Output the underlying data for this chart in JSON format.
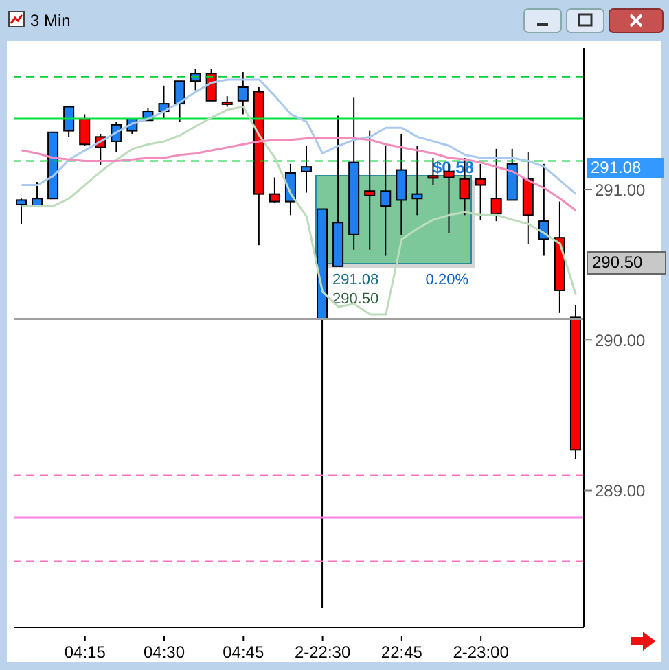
{
  "chart_data": {
    "type": "candlestick",
    "title": "3 Min",
    "categories": [
      null,
      null,
      null,
      null,
      "04:15",
      null,
      null,
      null,
      null,
      "04:30",
      null,
      null,
      null,
      null,
      "04:45",
      null,
      null,
      null,
      null,
      "2-22:30",
      null,
      null,
      null,
      null,
      "22:45",
      null,
      null,
      null,
      null,
      "2-23:00",
      null,
      null,
      null,
      null,
      null,
      null
    ],
    "ohlc": [
      [
        290.9,
        290.94,
        290.77,
        290.93
      ],
      [
        290.89,
        291.05,
        290.89,
        290.94
      ],
      [
        290.94,
        291.38,
        290.94,
        291.38
      ],
      [
        291.39,
        291.55,
        291.35,
        291.55
      ],
      [
        291.47,
        291.5,
        291.29,
        291.3
      ],
      [
        291.35,
        291.37,
        291.16,
        291.28
      ],
      [
        291.32,
        291.45,
        291.25,
        291.43
      ],
      [
        291.39,
        291.47,
        291.37,
        291.47
      ],
      [
        291.46,
        291.54,
        291.46,
        291.52
      ],
      [
        291.52,
        291.69,
        291.47,
        291.57
      ],
      [
        291.57,
        291.72,
        291.45,
        291.72
      ],
      [
        291.72,
        291.8,
        291.66,
        291.77
      ],
      [
        291.77,
        291.8,
        291.59,
        291.59
      ],
      [
        291.58,
        291.62,
        291.55,
        291.57
      ],
      [
        291.59,
        291.78,
        291.5,
        291.68
      ],
      [
        291.65,
        291.68,
        290.63,
        290.97
      ],
      [
        290.97,
        291.08,
        290.91,
        290.92
      ],
      [
        290.92,
        291.17,
        290.83,
        291.11
      ],
      [
        291.12,
        291.29,
        290.98,
        291.15
      ],
      [
        290.14,
        290.87,
        288.22,
        290.87
      ],
      [
        290.49,
        291.49,
        290.49,
        290.78
      ],
      [
        290.7,
        291.61,
        290.6,
        291.18
      ],
      [
        290.99,
        291.39,
        290.6,
        290.96
      ],
      [
        290.89,
        291.29,
        290.56,
        290.99
      ],
      [
        290.93,
        291.37,
        290.7,
        291.13
      ],
      [
        290.94,
        291.29,
        290.83,
        290.97
      ],
      [
        291.09,
        291.21,
        291.03,
        291.08
      ],
      [
        291.12,
        291.17,
        290.71,
        291.08
      ],
      [
        291.07,
        291.21,
        290.83,
        290.94
      ],
      [
        291.07,
        291.17,
        290.8,
        291.03
      ],
      [
        290.94,
        291.27,
        290.79,
        290.84
      ],
      [
        290.93,
        291.27,
        290.93,
        291.17
      ],
      [
        291.07,
        291.25,
        290.64,
        290.83
      ],
      [
        290.67,
        291.17,
        290.56,
        290.79
      ],
      [
        290.68,
        290.92,
        290.18,
        290.33
      ],
      [
        290.15,
        290.23,
        289.21,
        289.27
      ]
    ],
    "colors": [
      "#1e7ff0",
      "#1e7ff0",
      "#1e7ff0",
      "#1e7ff0",
      "#ff0000",
      "#ff0000",
      "#1e7ff0",
      "#1e7ff0",
      "#1e7ff0",
      "#1e7ff0",
      "#1e7ff0",
      "#1e7ff0",
      "#ff0000",
      "#ff0000",
      "#1e7ff0",
      "#ff0000",
      "#ff0000",
      "#1e7ff0",
      "#1e7ff0",
      "#1e7ff0",
      "#1e7ff0",
      "#1e7ff0",
      "#ff0000",
      "#1e7ff0",
      "#1e7ff0",
      "#1e7ff0",
      "#ff0000",
      "#ff0000",
      "#ff0000",
      "#ff0000",
      "#ff0000",
      "#1e7ff0",
      "#ff0000",
      "#1e7ff0",
      "#ff0000",
      "#ff0000"
    ],
    "series": [
      {
        "type": "line",
        "color": "#a9c9ee",
        "values": [
          291.03,
          291.03,
          291.09,
          291.2,
          291.26,
          291.32,
          291.38,
          291.44,
          291.47,
          291.52,
          291.58,
          291.65,
          291.71,
          291.73,
          291.73,
          291.73,
          291.62,
          291.5,
          291.45,
          291.24,
          291.29,
          291.33,
          291.35,
          291.41,
          291.41,
          291.35,
          291.32,
          291.29,
          291.23,
          291.21,
          291.21,
          291.21,
          291.19,
          291.15,
          291.06,
          290.97
        ]
      },
      {
        "type": "line",
        "color": "#bcdcbc",
        "values": [
          290.89,
          290.89,
          290.89,
          290.94,
          291.03,
          291.12,
          291.2,
          291.27,
          291.3,
          291.32,
          291.36,
          291.42,
          291.48,
          291.53,
          291.55,
          291.36,
          291.21,
          290.97,
          290.82,
          290.32,
          290.22,
          290.24,
          290.17,
          290.17,
          290.67,
          290.74,
          290.8,
          290.83,
          290.85,
          290.83,
          290.83,
          290.8,
          290.77,
          290.71,
          290.64,
          290.3
        ]
      },
      {
        "type": "line",
        "color": "#f28cbc",
        "values": [
          291.26,
          291.24,
          291.21,
          291.2,
          291.19,
          291.19,
          291.19,
          291.2,
          291.21,
          291.21,
          291.23,
          291.24,
          291.26,
          291.28,
          291.3,
          291.32,
          291.33,
          291.33,
          291.34,
          291.34,
          291.34,
          291.34,
          291.33,
          291.3,
          291.28,
          291.26,
          291.24,
          291.21,
          291.2,
          291.18,
          291.15,
          291.12,
          291.06,
          291.01,
          290.94,
          290.86
        ]
      }
    ],
    "ylim": [
      288.09,
      291.94
    ],
    "yticks": [
      {
        "value": 289,
        "label": "289.00"
      },
      {
        "value": 290,
        "label": "290.00"
      },
      {
        "value": 291,
        "label": "291.00"
      }
    ],
    "ref_lines": [
      {
        "axis": "y",
        "value": 291.75,
        "color": "#00d030",
        "line_style": "dashed"
      },
      {
        "axis": "y",
        "value": 291.47,
        "color": "#00e040",
        "line_style": "solid"
      },
      {
        "axis": "y",
        "value": 291.19,
        "color": "#00d030",
        "line_style": "dashed"
      },
      {
        "axis": "y",
        "value": 290.14,
        "color": "#a0a0a0",
        "line_style": "solid"
      },
      {
        "axis": "y",
        "value": 289.1,
        "color": "#ff70c0",
        "line_style": "dashed"
      },
      {
        "axis": "y",
        "value": 288.82,
        "color": "#ff80e0",
        "line_style": "solid"
      },
      {
        "axis": "y",
        "value": 288.53,
        "color": "#ff70c0",
        "line_style": "dashed"
      }
    ],
    "annotations": [
      "291.08",
      "290.50",
      "291.08",
      "290.50",
      "$0.58",
      "0.20%"
    ]
  }
}
